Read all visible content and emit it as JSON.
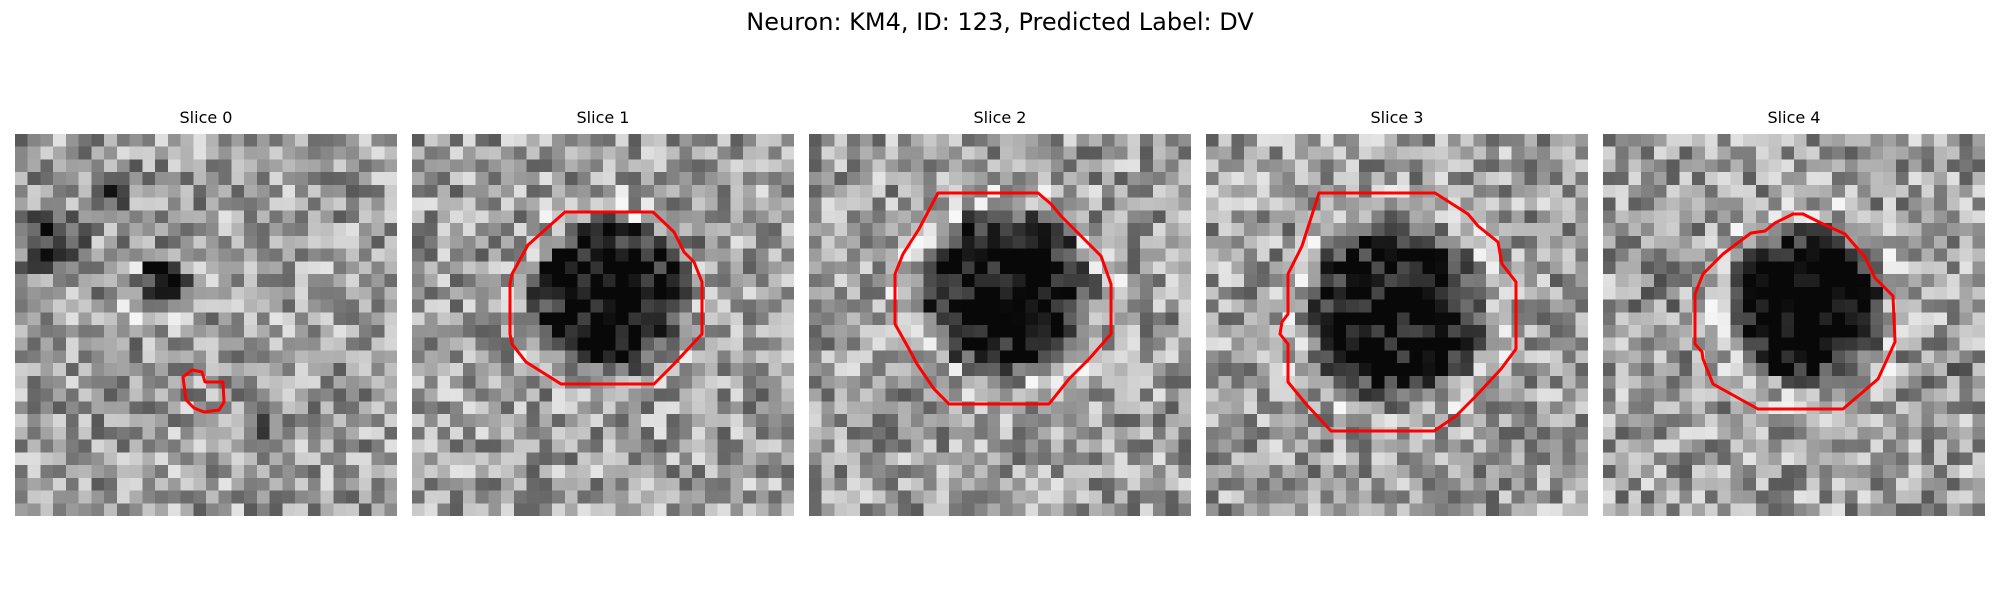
{
  "title": "Neuron: KM4, ID: 123, Predicted Label: DV",
  "colors": {
    "contour": "#ff0000"
  },
  "panels": [
    {
      "label": "Slice 0"
    },
    {
      "label": "Slice 1"
    },
    {
      "label": "Slice 2"
    },
    {
      "label": "Slice 3"
    },
    {
      "label": "Slice 4"
    }
  ]
}
